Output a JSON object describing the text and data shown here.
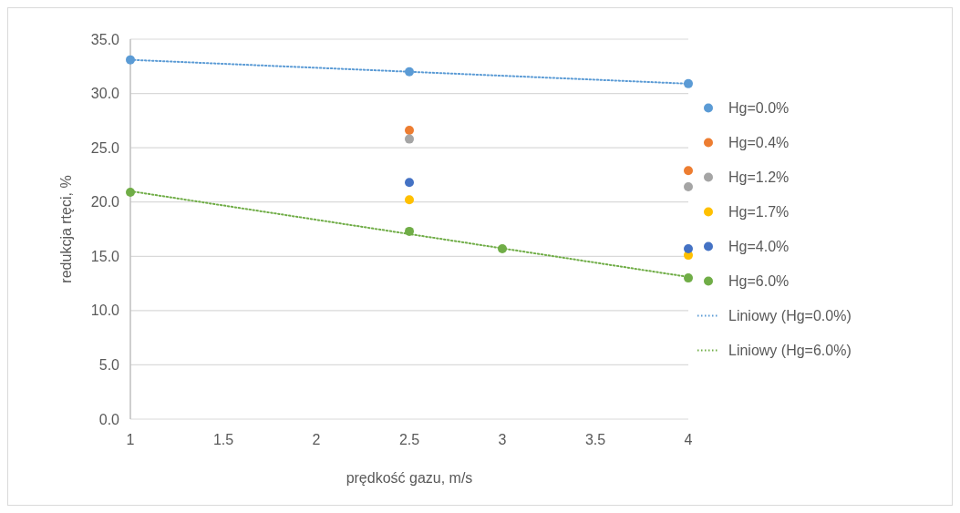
{
  "chart_data": {
    "type": "scatter",
    "xlabel": "prędkość gazu, m/s",
    "ylabel": "redukcja rtęci, %",
    "xlim": [
      1,
      4
    ],
    "xticks": [
      1,
      {
        "value": 1.5,
        "label": "1.5"
      },
      2,
      {
        "value": 2.5,
        "label": "2.5"
      },
      3,
      {
        "value": 3.5,
        "label": "3.5"
      },
      4
    ],
    "ylim": [
      0,
      35
    ],
    "yticks": [
      {
        "value": 0,
        "label": "0.0"
      },
      {
        "value": 5,
        "label": "5.0"
      },
      {
        "value": 10,
        "label": "10.0"
      },
      {
        "value": 15,
        "label": "15.0"
      },
      {
        "value": 20,
        "label": "20.0"
      },
      {
        "value": 25,
        "label": "25.0"
      },
      {
        "value": 30,
        "label": "30.0"
      },
      {
        "value": 35,
        "label": "35.0"
      }
    ],
    "grid": "y",
    "legend": "right",
    "marker": "circle",
    "series": [
      {
        "name": "Hg=0.0%",
        "color": "#5b9bd5",
        "x": [
          1,
          2.5,
          4
        ],
        "values": [
          33.1,
          32.0,
          30.9
        ]
      },
      {
        "name": "Hg=0.4%",
        "color": "#ed7d31",
        "x": [
          2.5,
          4
        ],
        "values": [
          26.6,
          22.9
        ]
      },
      {
        "name": "Hg=1.2%",
        "color": "#a5a5a5",
        "x": [
          2.5,
          4
        ],
        "values": [
          25.8,
          21.4
        ]
      },
      {
        "name": "Hg=1.7%",
        "color": "#ffc000",
        "x": [
          2.5,
          4
        ],
        "values": [
          20.2,
          15.1
        ]
      },
      {
        "name": "Hg=4.0%",
        "color": "#4472c4",
        "x": [
          2.5,
          4
        ],
        "values": [
          21.8,
          15.7
        ]
      },
      {
        "name": "Hg=6.0%",
        "color": "#70ad47",
        "x": [
          1,
          2.5,
          3,
          4
        ],
        "values": [
          20.9,
          17.3,
          15.7,
          13.0
        ]
      },
      {
        "name": "Liniowy (Hg=0.0%)",
        "type": "line",
        "line_style": "dotted",
        "marker": "none",
        "color": "#5b9bd5",
        "x": [
          1,
          4
        ],
        "values": [
          33.1,
          30.9
        ]
      },
      {
        "name": "Liniowy (Hg=6.0%)",
        "type": "line",
        "line_style": "dotted",
        "marker": "none",
        "color": "#70ad47",
        "x": [
          1,
          4
        ],
        "values": [
          21.0,
          13.1
        ]
      }
    ]
  }
}
